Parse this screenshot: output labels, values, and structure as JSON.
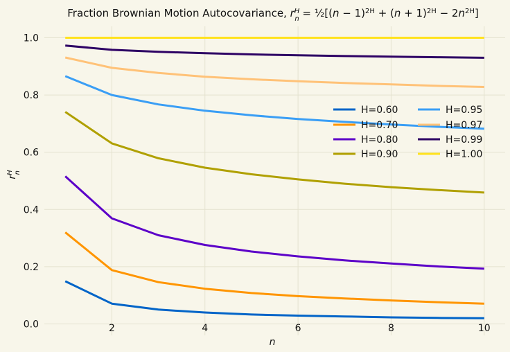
{
  "chart_data": {
    "type": "line",
    "title_prefix": "Fraction Brownian Motion Autocovariance, ",
    "title_formula": "r_n^H = ½[(n−1)^{2H} + (n+1)^{2H} − 2n^{2H}]",
    "xlabel": "n",
    "ylabel": "r_n^H",
    "xlim": [
      0.55,
      10.45
    ],
    "ylim": [
      -0.04,
      1.04
    ],
    "xticks": [
      2,
      4,
      6,
      8,
      10
    ],
    "yticks": [
      0.0,
      0.2,
      0.4,
      0.6,
      0.8,
      1.0
    ],
    "grid": true,
    "legend_position": "center-right",
    "legend_columns": 2,
    "x": [
      1,
      2,
      3,
      4,
      5,
      6,
      7,
      8,
      9,
      10
    ],
    "series": [
      {
        "name": "H=0.60",
        "color": "#0064c8",
        "values": [
          0.149,
          0.071,
          0.05,
          0.04,
          0.033,
          0.029,
          0.026,
          0.023,
          0.021,
          0.02
        ]
      },
      {
        "name": "H=0.70",
        "color": "#ff9500",
        "values": [
          0.32,
          0.188,
          0.146,
          0.123,
          0.108,
          0.097,
          0.089,
          0.082,
          0.076,
          0.071
        ]
      },
      {
        "name": "H=0.80",
        "color": "#5c00c8",
        "values": [
          0.516,
          0.369,
          0.31,
          0.276,
          0.253,
          0.236,
          0.222,
          0.211,
          0.201,
          0.193
        ]
      },
      {
        "name": "H=0.90",
        "color": "#b0a000",
        "values": [
          0.741,
          0.631,
          0.579,
          0.546,
          0.523,
          0.505,
          0.49,
          0.478,
          0.468,
          0.459
        ]
      },
      {
        "name": "H=0.95",
        "color": "#3a9ef5",
        "values": [
          0.866,
          0.8,
          0.767,
          0.745,
          0.729,
          0.716,
          0.706,
          0.697,
          0.689,
          0.682
        ]
      },
      {
        "name": "H=0.97",
        "color": "#ffc278",
        "values": [
          0.931,
          0.895,
          0.877,
          0.864,
          0.855,
          0.848,
          0.842,
          0.837,
          0.832,
          0.828
        ]
      },
      {
        "name": "H=0.99",
        "color": "#2d0064",
        "values": [
          0.973,
          0.958,
          0.951,
          0.946,
          0.942,
          0.939,
          0.936,
          0.934,
          0.932,
          0.93
        ]
      },
      {
        "name": "H=1.00",
        "color": "#ffe21e",
        "values": [
          1.0,
          1.0,
          1.0,
          1.0,
          1.0,
          1.0,
          1.0,
          1.0,
          1.0,
          1.0
        ]
      }
    ]
  }
}
